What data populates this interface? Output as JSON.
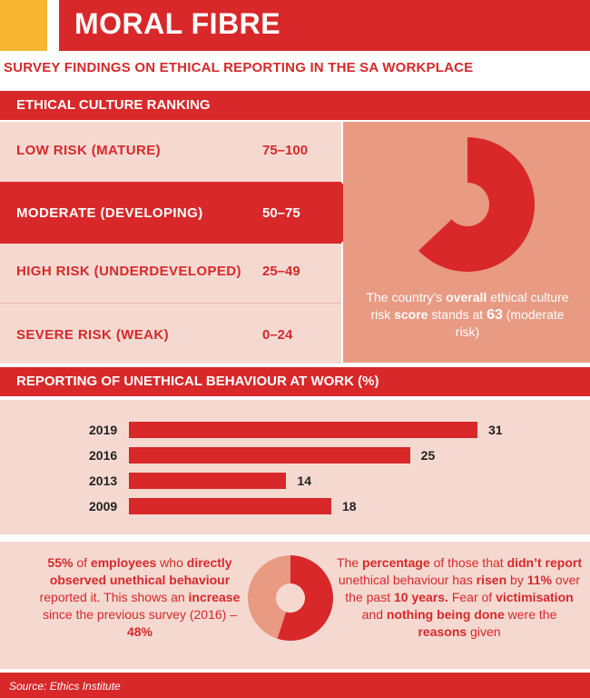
{
  "header": {
    "title": "MORAL FIBRE",
    "subtitle": "SURVEY FINDINGS ON ETHICAL REPORTING IN THE SA WORKPLACE"
  },
  "ranking": {
    "heading": "ETHICAL CULTURE RANKING",
    "rows": [
      {
        "label": "LOW RISK (MATURE)",
        "range": "75–100"
      },
      {
        "label": "MODERATE (DEVELOPING)",
        "range": "50–75"
      },
      {
        "label": "HIGH RISK (UNDERDEVELOPED)",
        "range": "25–49"
      },
      {
        "label": "SEVERE RISK (WEAK)",
        "range": "0–24"
      }
    ],
    "active_index": 1,
    "score_text": {
      "p1": "The country’s ",
      "b1": "overall",
      "p2": " ethical culture risk ",
      "b2": "score",
      "p3": " stands at ",
      "b3": "63",
      "p4": " (moderate risk)"
    }
  },
  "reporting": {
    "heading": "REPORTING OF UNETHICAL BEHAVIOUR AT WORK (%)"
  },
  "left_text": {
    "b1": "55%",
    "p1": " of ",
    "b2": "employees",
    "p2": " who ",
    "b3": "directly observed unethical behaviour",
    "p3": " reported it. This shows an ",
    "b4": "increase",
    "p4": " since the previous survey (2016) – ",
    "b5": "48%"
  },
  "right_text": {
    "p1": "The ",
    "b1": "percentage",
    "p2": " of those that ",
    "b2": "didn’t report",
    "p3": " unethical behaviour has ",
    "b3": "risen",
    "p4": " by ",
    "b4": "11%",
    "p5": " over the past ",
    "b5": "10 years.",
    "p6": " Fear of ",
    "b6": "victimisation",
    "p7": " and ",
    "b7": "nothing being done",
    "p8": " were the ",
    "b8": "reasons",
    "p9": " given"
  },
  "source": "Source: Ethics Institute",
  "colors": {
    "accent": "#d8282a",
    "yellow": "#f7b731",
    "light": "#f5d9d1",
    "salmon": "#e89a83"
  },
  "chart_data": [
    {
      "type": "pie",
      "role": "donut",
      "values": [
        63,
        37
      ],
      "labels": [
        "score",
        "remaining"
      ],
      "colors": [
        "#d8282a",
        "#e89a83"
      ]
    },
    {
      "type": "bar",
      "orientation": "horizontal",
      "categories": [
        "2019",
        "2016",
        "2013",
        "2009"
      ],
      "values": [
        31,
        25,
        14,
        18
      ],
      "xlim": [
        0,
        31
      ]
    },
    {
      "type": "pie",
      "role": "donut",
      "values": [
        55,
        45
      ],
      "labels": [
        "reported",
        "not reported"
      ],
      "colors": [
        "#d8282a",
        "#e89a83"
      ]
    }
  ]
}
